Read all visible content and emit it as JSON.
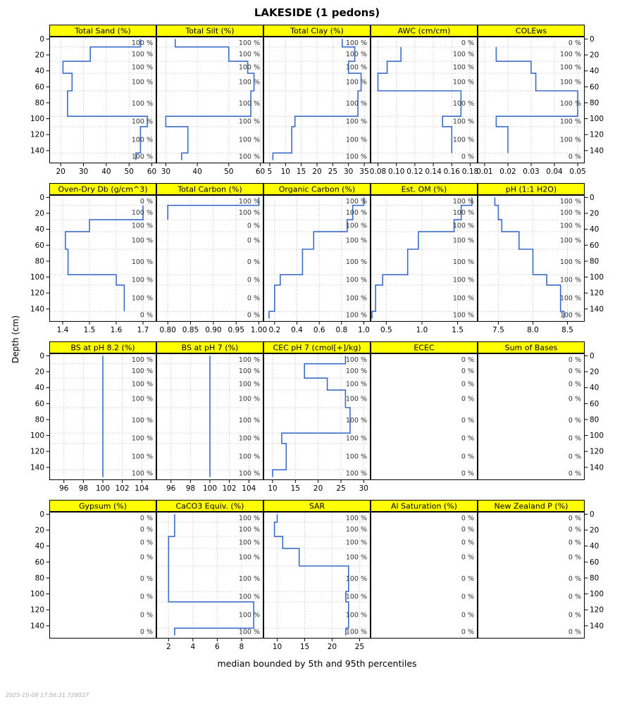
{
  "title": "LAKESIDE (1 pedons)",
  "ylab": "Depth (cm)",
  "caption": "median bounded by 5th and 95th percentiles",
  "timestamp": "2025-10-08 17:56:31.728027",
  "chart_data": {
    "type": "line",
    "subtype": "soil-depth-profile-lattice",
    "title": "LAKESIDE (1 pedons)",
    "grid": "dotted",
    "colors": {
      "line": "#3B6CC8",
      "strip_bg": "#FFFF00",
      "grid": "#B3B3B3",
      "percent_label": "#333333",
      "frame": "#000000"
    },
    "depth_axis": {
      "label": "Depth (cm)",
      "ticks": [
        0,
        20,
        40,
        60,
        80,
        100,
        120,
        140
      ],
      "range": [
        0,
        152
      ]
    },
    "slab_boundaries": [
      0,
      10,
      28,
      43,
      65,
      97,
      110,
      143,
      152
    ],
    "panels": [
      {
        "title": "Total Sand (%)",
        "xlim": [
          15,
          62
        ],
        "ticks": [
          {
            "v": 20,
            "l": "20"
          },
          {
            "v": 30,
            "l": "30"
          },
          {
            "v": 40,
            "l": "40"
          },
          {
            "v": 50,
            "l": "50"
          },
          {
            "v": 60,
            "l": "60"
          }
        ],
        "values": [
          55,
          33,
          21,
          25,
          23,
          58,
          55,
          53
        ],
        "pct": [
          100,
          100,
          100,
          100,
          100,
          100,
          100,
          100
        ]
      },
      {
        "title": "Total Silt (%)",
        "xlim": [
          27,
          61
        ],
        "ticks": [
          {
            "v": 30,
            "l": "30"
          },
          {
            "v": 40,
            "l": "40"
          },
          {
            "v": 50,
            "l": "50"
          },
          {
            "v": 60,
            "l": "60"
          }
        ],
        "values": [
          33,
          50,
          56,
          58,
          57,
          30,
          37,
          35
        ],
        "pct": [
          100,
          100,
          100,
          100,
          100,
          100,
          100,
          100
        ]
      },
      {
        "title": "Total Clay (%)",
        "xlim": [
          3,
          37
        ],
        "ticks": [
          {
            "v": 5,
            "l": "5"
          },
          {
            "v": 10,
            "l": "10"
          },
          {
            "v": 15,
            "l": "15"
          },
          {
            "v": 20,
            "l": "20"
          },
          {
            "v": 25,
            "l": "25"
          },
          {
            "v": 30,
            "l": "30"
          },
          {
            "v": 35,
            "l": "35"
          }
        ],
        "values": [
          28,
          32,
          30,
          34,
          33,
          13,
          12,
          6
        ],
        "pct": [
          100,
          100,
          100,
          100,
          100,
          100,
          100,
          100
        ]
      },
      {
        "title": "AWC (cm/cm)",
        "xlim": [
          0.072,
          0.188
        ],
        "ticks": [
          {
            "v": 0.08,
            "l": "0.08"
          },
          {
            "v": 0.1,
            "l": "0.10"
          },
          {
            "v": 0.12,
            "l": "0.12"
          },
          {
            "v": 0.14,
            "l": "0.14"
          },
          {
            "v": 0.16,
            "l": "0.16"
          },
          {
            "v": 0.18,
            "l": "0.18"
          }
        ],
        "values": [
          null,
          0.105,
          0.09,
          0.08,
          0.17,
          0.15,
          0.16,
          null
        ],
        "pct": [
          0,
          100,
          100,
          100,
          100,
          100,
          100,
          0
        ]
      },
      {
        "title": "COLEws",
        "xlim": [
          0.007,
          0.053
        ],
        "ticks": [
          {
            "v": 0.01,
            "l": "0.01"
          },
          {
            "v": 0.02,
            "l": "0.02"
          },
          {
            "v": 0.03,
            "l": "0.03"
          },
          {
            "v": 0.04,
            "l": "0.04"
          },
          {
            "v": 0.05,
            "l": "0.05"
          }
        ],
        "values": [
          null,
          0.015,
          0.03,
          0.032,
          0.05,
          0.015,
          0.02,
          null
        ],
        "pct": [
          0,
          100,
          100,
          100,
          100,
          100,
          100,
          0
        ]
      },
      {
        "title": "Oven-Dry Db (g/cm^3)",
        "xlim": [
          1.35,
          1.75
        ],
        "ticks": [
          {
            "v": 1.4,
            "l": "1.4"
          },
          {
            "v": 1.5,
            "l": "1.5"
          },
          {
            "v": 1.6,
            "l": "1.6"
          },
          {
            "v": 1.7,
            "l": "1.7"
          }
        ],
        "values": [
          null,
          1.7,
          1.5,
          1.41,
          1.42,
          1.6,
          1.63,
          null
        ],
        "pct": [
          0,
          100,
          100,
          100,
          100,
          100,
          100,
          0
        ]
      },
      {
        "title": "Total Carbon (%)",
        "xlim": [
          0.775,
          1.01
        ],
        "ticks": [
          {
            "v": 0.8,
            "l": "0.80"
          },
          {
            "v": 0.85,
            "l": "0.85"
          },
          {
            "v": 0.9,
            "l": "0.90"
          },
          {
            "v": 0.95,
            "l": "0.95"
          },
          {
            "v": 1.0,
            "l": "1.00"
          }
        ],
        "values": [
          1.0,
          0.8,
          null,
          null,
          null,
          null,
          null,
          null
        ],
        "pct": [
          100,
          100,
          0,
          0,
          0,
          0,
          0,
          0
        ]
      },
      {
        "title": "Organic Carbon (%)",
        "xlim": [
          0.1,
          1.06
        ],
        "ticks": [
          {
            "v": 0.2,
            "l": "0.2"
          },
          {
            "v": 0.4,
            "l": "0.4"
          },
          {
            "v": 0.6,
            "l": "0.6"
          },
          {
            "v": 0.8,
            "l": "0.8"
          },
          {
            "v": 1.0,
            "l": "1.0"
          }
        ],
        "values": [
          1.0,
          0.9,
          0.85,
          0.55,
          0.45,
          0.25,
          0.2,
          0.15
        ],
        "pct": [
          100,
          100,
          100,
          100,
          100,
          100,
          100,
          100
        ]
      },
      {
        "title": "Est. OM (%)",
        "xlim": [
          0.28,
          1.78
        ],
        "ticks": [
          {
            "v": 0.5,
            "l": "0.5"
          },
          {
            "v": 1.0,
            "l": "1.0"
          },
          {
            "v": 1.5,
            "l": "1.5"
          }
        ],
        "values": [
          1.7,
          1.55,
          1.45,
          0.95,
          0.8,
          0.45,
          0.35,
          0.3
        ],
        "pct": [
          100,
          100,
          100,
          100,
          100,
          100,
          100,
          100
        ]
      },
      {
        "title": "pH (1:1 H2O)",
        "xlim": [
          7.2,
          8.75
        ],
        "ticks": [
          {
            "v": 7.5,
            "l": "7.5"
          },
          {
            "v": 8.0,
            "l": "8.0"
          },
          {
            "v": 8.5,
            "l": "8.5"
          }
        ],
        "values": [
          7.45,
          7.5,
          7.55,
          7.8,
          8.0,
          8.2,
          8.4,
          8.45
        ],
        "pct": [
          100,
          100,
          100,
          100,
          100,
          100,
          100,
          100
        ]
      },
      {
        "title": "BS at pH 8.2 (%)",
        "xlim": [
          94.5,
          105.5
        ],
        "ticks": [
          {
            "v": 96,
            "l": "96"
          },
          {
            "v": 98,
            "l": "98"
          },
          {
            "v": 100,
            "l": "100"
          },
          {
            "v": 102,
            "l": "102"
          },
          {
            "v": 104,
            "l": "104"
          }
        ],
        "values": [
          100,
          100,
          100,
          100,
          100,
          100,
          100,
          100
        ],
        "pct": [
          100,
          100,
          100,
          100,
          100,
          100,
          100,
          100
        ]
      },
      {
        "title": "BS at pH 7 (%)",
        "xlim": [
          94.5,
          105.5
        ],
        "ticks": [
          {
            "v": 96,
            "l": "96"
          },
          {
            "v": 98,
            "l": "98"
          },
          {
            "v": 100,
            "l": "100"
          },
          {
            "v": 102,
            "l": "102"
          },
          {
            "v": 104,
            "l": "104"
          }
        ],
        "values": [
          100,
          100,
          100,
          100,
          100,
          100,
          100,
          100
        ],
        "pct": [
          100,
          100,
          100,
          100,
          100,
          100,
          100,
          100
        ]
      },
      {
        "title": "CEC pH 7 (cmol[+]/kg)",
        "xlim": [
          8,
          31.5
        ],
        "ticks": [
          {
            "v": 10,
            "l": "10"
          },
          {
            "v": 15,
            "l": "15"
          },
          {
            "v": 20,
            "l": "20"
          },
          {
            "v": 25,
            "l": "25"
          },
          {
            "v": 30,
            "l": "30"
          }
        ],
        "values": [
          26,
          17,
          22,
          26,
          27,
          12,
          13,
          10
        ],
        "pct": [
          100,
          100,
          100,
          100,
          100,
          100,
          100,
          100
        ]
      },
      {
        "title": "ECEC",
        "xlim": [
          0,
          1
        ],
        "ticks": [],
        "values": [
          null,
          null,
          null,
          null,
          null,
          null,
          null,
          null
        ],
        "pct": [
          0,
          0,
          0,
          0,
          0,
          0,
          0,
          0
        ]
      },
      {
        "title": "Sum of Bases",
        "xlim": [
          0,
          1
        ],
        "ticks": [],
        "values": [
          null,
          null,
          null,
          null,
          null,
          null,
          null,
          null
        ],
        "pct": [
          0,
          0,
          0,
          0,
          0,
          0,
          0,
          0
        ]
      },
      {
        "title": "Gypsum (%)",
        "xlim": [
          0,
          1
        ],
        "ticks": [],
        "values": [
          null,
          null,
          null,
          null,
          null,
          null,
          null,
          null
        ],
        "pct": [
          0,
          0,
          0,
          0,
          0,
          0,
          0,
          0
        ]
      },
      {
        "title": "CaCO3 Equiv. (%)",
        "xlim": [
          1,
          9.8
        ],
        "ticks": [
          {
            "v": 2,
            "l": "2"
          },
          {
            "v": 4,
            "l": "4"
          },
          {
            "v": 6,
            "l": "6"
          },
          {
            "v": 8,
            "l": "8"
          }
        ],
        "values": [
          2.5,
          2.5,
          2.0,
          2.0,
          2.0,
          2.0,
          9.0,
          2.5
        ],
        "pct": [
          100,
          100,
          100,
          100,
          100,
          100,
          100,
          100
        ]
      },
      {
        "title": "SAR",
        "xlim": [
          7.5,
          27
        ],
        "ticks": [
          {
            "v": 10,
            "l": "10"
          },
          {
            "v": 15,
            "l": "15"
          },
          {
            "v": 20,
            "l": "20"
          },
          {
            "v": 25,
            "l": "25"
          }
        ],
        "values": [
          10,
          9.5,
          11,
          14,
          23,
          22.5,
          23,
          22.5
        ],
        "pct": [
          100,
          100,
          100,
          100,
          100,
          100,
          100,
          100
        ]
      },
      {
        "title": "Al Saturation (%)",
        "xlim": [
          0,
          1
        ],
        "ticks": [],
        "values": [
          null,
          null,
          null,
          null,
          null,
          null,
          null,
          null
        ],
        "pct": [
          0,
          0,
          0,
          0,
          0,
          0,
          0,
          0
        ]
      },
      {
        "title": "New Zealand P (%)",
        "xlim": [
          0,
          1
        ],
        "ticks": [],
        "values": [
          null,
          null,
          null,
          null,
          null,
          null,
          null,
          null
        ],
        "pct": [
          0,
          0,
          0,
          0,
          0,
          0,
          0,
          0
        ]
      }
    ]
  }
}
